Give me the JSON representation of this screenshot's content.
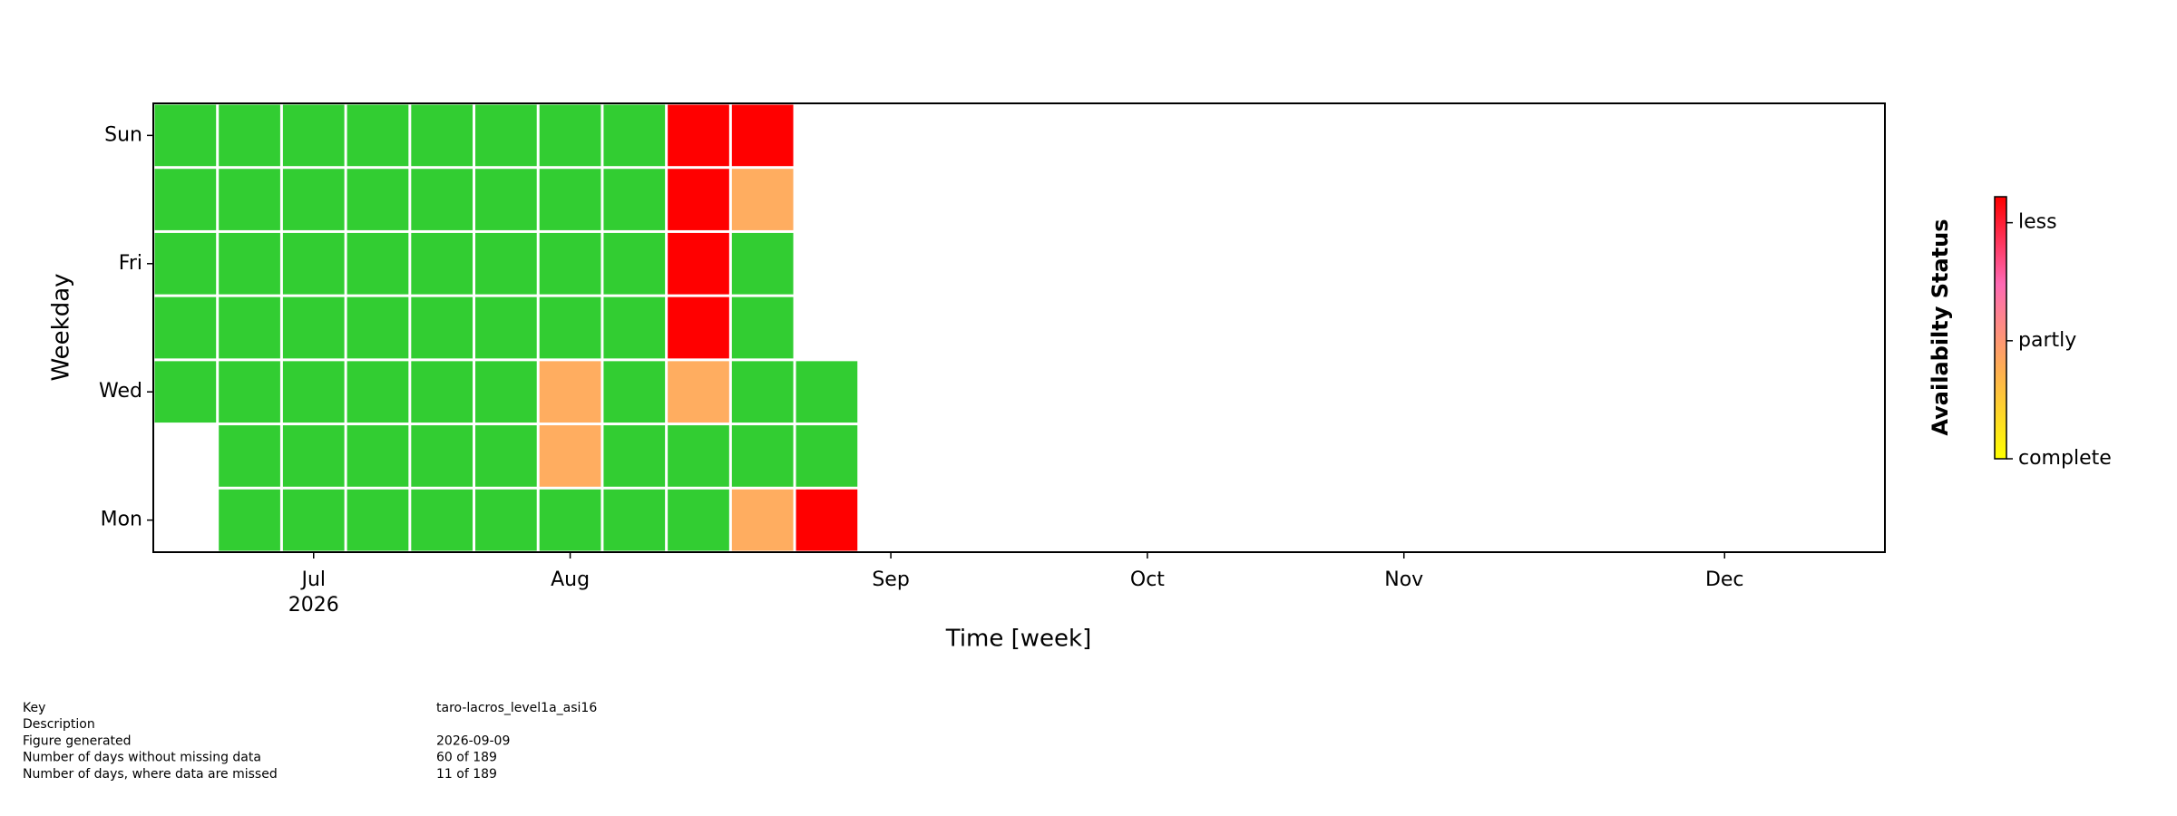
{
  "chart_data": {
    "type": "heatmap",
    "x": [
      0,
      1,
      2,
      3,
      4,
      5,
      6,
      7,
      8,
      9,
      10,
      11,
      12,
      13,
      14,
      15,
      16,
      17,
      18,
      19,
      20,
      21,
      22,
      23,
      24,
      25,
      26
    ],
    "xlim": [
      -0.5,
      26.5
    ],
    "xticks": [
      {
        "value": 2,
        "label": "Jul\n2026"
      },
      {
        "value": 6,
        "label": "Aug"
      },
      {
        "value": 11,
        "label": "Sep"
      },
      {
        "value": 15,
        "label": "Oct"
      },
      {
        "value": 19,
        "label": "Nov"
      },
      {
        "value": 24,
        "label": "Dec"
      }
    ],
    "xlabel": "Time [week]",
    "ylabel": "Weekday",
    "rows": [
      "Mon",
      null,
      "Wed",
      null,
      "Fri",
      null,
      "Sun"
    ],
    "status_colors": [
      "#32cd32",
      "#ffad60",
      "#ff0000"
    ],
    "values": [
      [
        null,
        0,
        0,
        0,
        0,
        0,
        0,
        0,
        0,
        1,
        2,
        null,
        null,
        null,
        null,
        null,
        null,
        null,
        null,
        null,
        null,
        null,
        null,
        null,
        null,
        null,
        null
      ],
      [
        null,
        0,
        0,
        0,
        0,
        0,
        1,
        0,
        0,
        0,
        0,
        null,
        null,
        null,
        null,
        null,
        null,
        null,
        null,
        null,
        null,
        null,
        null,
        null,
        null,
        null,
        null
      ],
      [
        0,
        0,
        0,
        0,
        0,
        0,
        1,
        0,
        1,
        0,
        0,
        null,
        null,
        null,
        null,
        null,
        null,
        null,
        null,
        null,
        null,
        null,
        null,
        null,
        null,
        null,
        null
      ],
      [
        0,
        0,
        0,
        0,
        0,
        0,
        0,
        0,
        2,
        0,
        null,
        null,
        null,
        null,
        null,
        null,
        null,
        null,
        null,
        null,
        null,
        null,
        null,
        null,
        null,
        null,
        null
      ],
      [
        0,
        0,
        0,
        0,
        0,
        0,
        0,
        0,
        2,
        0,
        null,
        null,
        null,
        null,
        null,
        null,
        null,
        null,
        null,
        null,
        null,
        null,
        null,
        null,
        null,
        null,
        null
      ],
      [
        0,
        0,
        0,
        0,
        0,
        0,
        0,
        0,
        2,
        1,
        null,
        null,
        null,
        null,
        null,
        null,
        null,
        null,
        null,
        null,
        null,
        null,
        null,
        null,
        null,
        null,
        null
      ],
      [
        0,
        0,
        0,
        0,
        0,
        0,
        0,
        0,
        2,
        2,
        null,
        null,
        null,
        null,
        null,
        null,
        null,
        null,
        null,
        null,
        null,
        null,
        null,
        null,
        null,
        null,
        null
      ]
    ],
    "colorbar": {
      "label": "Availabilty Status",
      "colors": [
        "#ffff00",
        "#ffb050",
        "#ff69b4",
        "#ff0000"
      ],
      "lim": [
        0,
        2.22
      ],
      "ticks": [
        {
          "value": 0,
          "label": "complete"
        },
        {
          "value": 1,
          "label": "partly"
        },
        {
          "value": 2,
          "label": "less"
        }
      ]
    }
  },
  "footer": {
    "rows": [
      [
        "Key",
        "taro-lacros_level1a_asi16"
      ],
      [
        "Description"
      ],
      [
        "Figure generated",
        "2026-09-09"
      ],
      [
        "Number of days without missing data",
        "60 of 189"
      ],
      [
        "Number of days, where data are missed",
        "11 of 189"
      ]
    ]
  }
}
